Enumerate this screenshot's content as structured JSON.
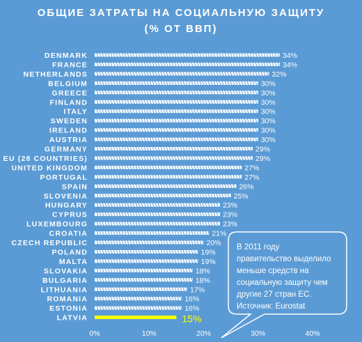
{
  "title_line1": "ОБЩИЕ ЗАТРАТЫ НА СОЦИАЛЬНУЮ ЗАЩИТУ",
  "title_line2": "(% ОТ ВВП)",
  "callout": {
    "lines": [
      "В 2011 году",
      "правительство выделило",
      "меньше средств на",
      "социальную защиту чем",
      "другие 27 стран ЕС.",
      "Источник: Eurostat"
    ]
  },
  "colors": {
    "background": "#5b9bd5",
    "bar": "#ffffff",
    "highlight": "#ffff00"
  },
  "chart_data": {
    "type": "bar",
    "orientation": "horizontal",
    "categories": [
      "DENMARK",
      "FRANCE",
      "NETHERLANDS",
      "BELGIUM",
      "GREECE",
      "FINLAND",
      "ITALY",
      "SWEDEN",
      "IRELAND",
      "AUSTRIA",
      "GERMANY",
      "EU (28 COUNTRIES)",
      "UNITED KINGDOM",
      "PORTUGAL",
      "SPAIN",
      "SLOVENIA",
      "HUNGARY",
      "CYPRUS",
      "LUXEMBOURG",
      "CROATIA",
      "CZECH REPUBLIC",
      "POLAND",
      "MALTA",
      "SLOVAKIA",
      "BULGARIA",
      "LITHUANIA",
      "ROMANIA",
      "ESTONIA",
      "LATVIA"
    ],
    "values": [
      34,
      34,
      32,
      30,
      30,
      30,
      30,
      30,
      30,
      30,
      29,
      29,
      27,
      27,
      26,
      25,
      23,
      23,
      23,
      21,
      20,
      19,
      19,
      18,
      18,
      17,
      16,
      16,
      15
    ],
    "value_labels": [
      "34%",
      "34%",
      "32%",
      "30%",
      "30%",
      "30%",
      "30%",
      "30%",
      "30%",
      "30%",
      "29%",
      "29%",
      "27%",
      "27%",
      "26%",
      "25%",
      "23%",
      "23%",
      "23%",
      "21%",
      "20%",
      "19%",
      "19%",
      "18%",
      "18%",
      "17%",
      "16%",
      "16%",
      "15%"
    ],
    "highlight": "LATVIA",
    "xlim": [
      0,
      40
    ],
    "xticks": [
      "0%",
      "10%",
      "20%",
      "30%",
      "40%"
    ],
    "grid": false,
    "bar_style": "dashed"
  }
}
